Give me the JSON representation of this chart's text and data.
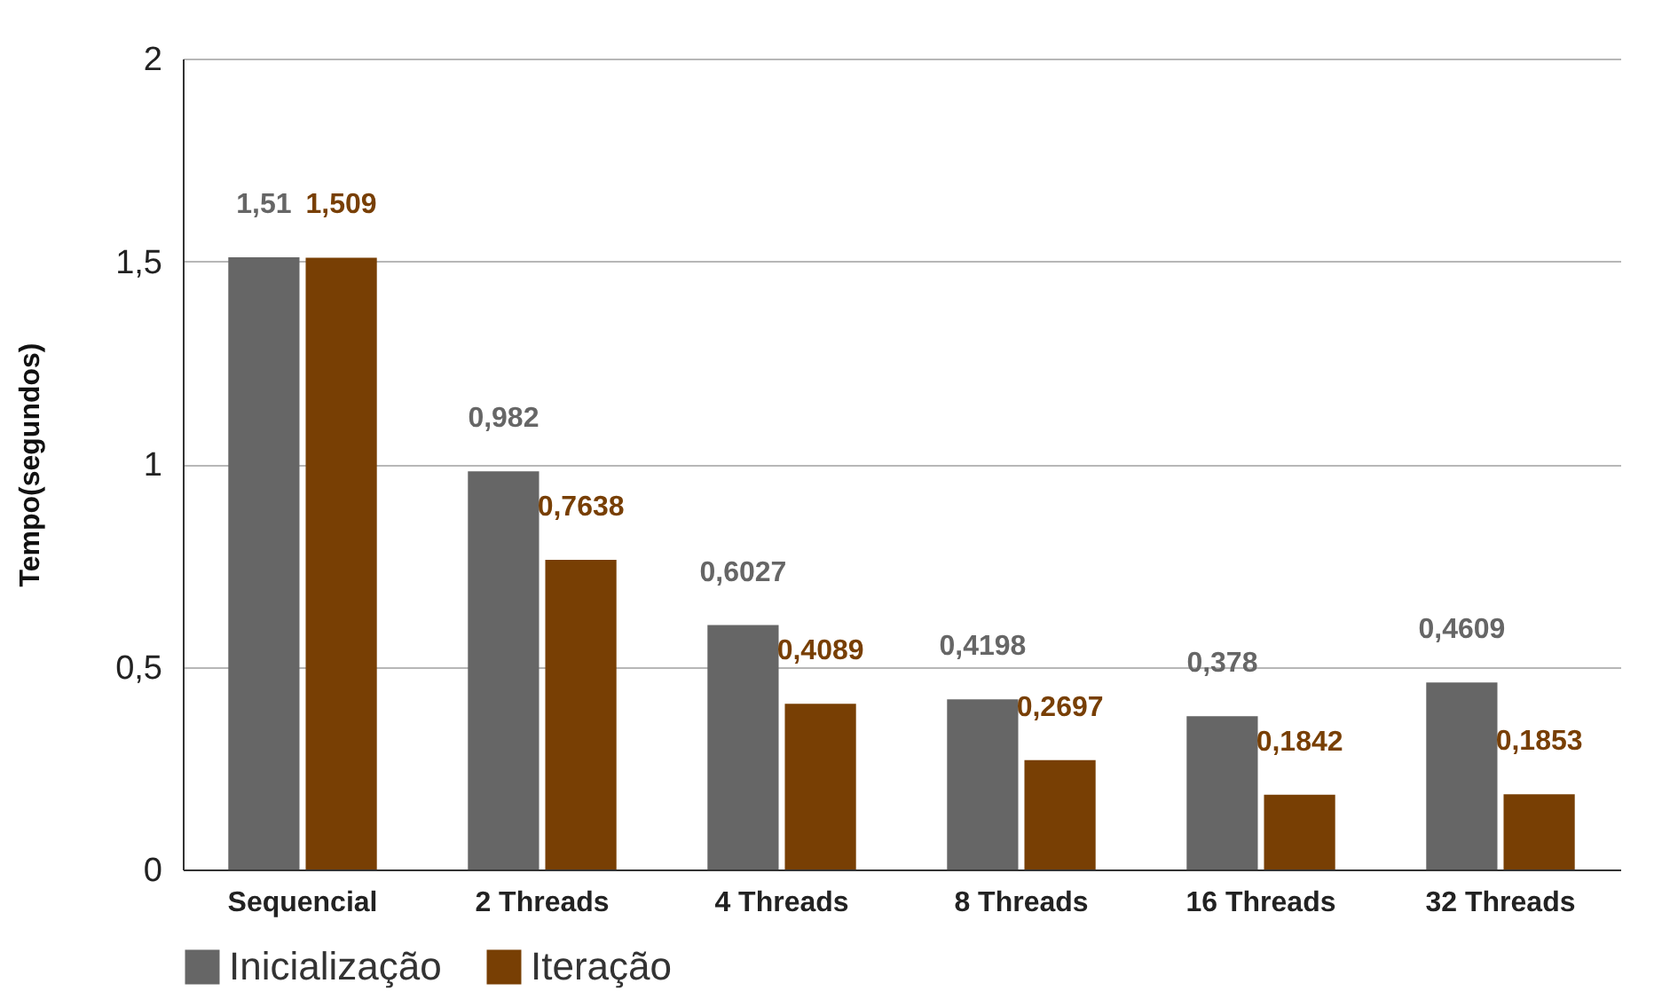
{
  "chart_data": {
    "type": "bar",
    "ylabel": "Tempo(segundos)",
    "categories": [
      "Sequencial",
      "2 Threads",
      "4 Threads",
      "8 Threads",
      "16 Threads",
      "32 Threads"
    ],
    "series": [
      {
        "name": "Inicialização",
        "color": "#666666",
        "values": [
          1.51,
          0.982,
          0.6027,
          0.4198,
          0.378,
          0.4609
        ],
        "value_labels": [
          "1,51",
          "0,982",
          "0,6027",
          "0,4198",
          "0,378",
          "0,4609"
        ]
      },
      {
        "name": "Iteração",
        "color": "#783f04",
        "values": [
          1.509,
          0.7638,
          0.4089,
          0.2697,
          0.1842,
          0.1853
        ],
        "value_labels": [
          "1,509",
          "0,7638",
          "0,4089",
          "0,2697",
          "0,1842",
          "0,1853"
        ]
      }
    ],
    "ylim": [
      0,
      2
    ],
    "yticks": [
      0,
      {
        "value": 0.5,
        "label": "0,5"
      },
      1,
      {
        "value": 1.5,
        "label": "1,5"
      },
      2
    ],
    "grid": "y",
    "legend": "bottom"
  }
}
